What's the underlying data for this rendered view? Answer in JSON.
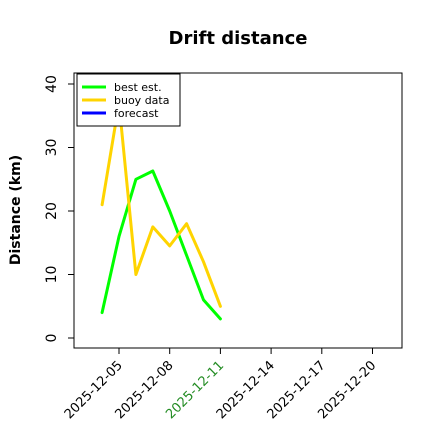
{
  "chart_data": {
    "type": "line",
    "title": "Drift distance",
    "ylabel": "Distance (km)",
    "xlabel": "",
    "ylim": [
      -0.5,
      41
    ],
    "yticks": [
      0,
      10,
      20,
      30,
      40
    ],
    "x_ticks": [
      {
        "label": "2025-12-05",
        "color": "#000000"
      },
      {
        "label": "2025-12-08",
        "color": "#000000"
      },
      {
        "label": "2025-12-11",
        "color": "#228B22"
      },
      {
        "label": "2025-12-14",
        "color": "#000000"
      },
      {
        "label": "2025-12-17",
        "color": "#000000"
      },
      {
        "label": "2025-12-20",
        "color": "#000000"
      }
    ],
    "grid": false,
    "legend_position": "top-left",
    "series": [
      {
        "name": "best est.",
        "color": "#00ff00",
        "x": [
          "2025-12-04",
          "2025-12-05",
          "2025-12-06",
          "2025-12-07",
          "2025-12-08",
          "2025-12-09",
          "2025-12-10",
          "2025-12-11"
        ],
        "y": [
          4,
          16,
          25,
          26.3,
          20,
          13,
          6,
          3
        ]
      },
      {
        "name": "buoy data",
        "color": "#ffd400",
        "x": [
          "2025-12-04",
          "2025-12-05",
          "2025-12-06",
          "2025-12-07",
          "2025-12-08",
          "2025-12-09",
          "2025-12-10",
          "2025-12-11"
        ],
        "y": [
          21,
          37,
          10,
          17.5,
          14.5,
          18,
          12,
          5
        ]
      },
      {
        "name": "forecast",
        "color": "#0000ff",
        "x": [],
        "y": []
      }
    ]
  }
}
